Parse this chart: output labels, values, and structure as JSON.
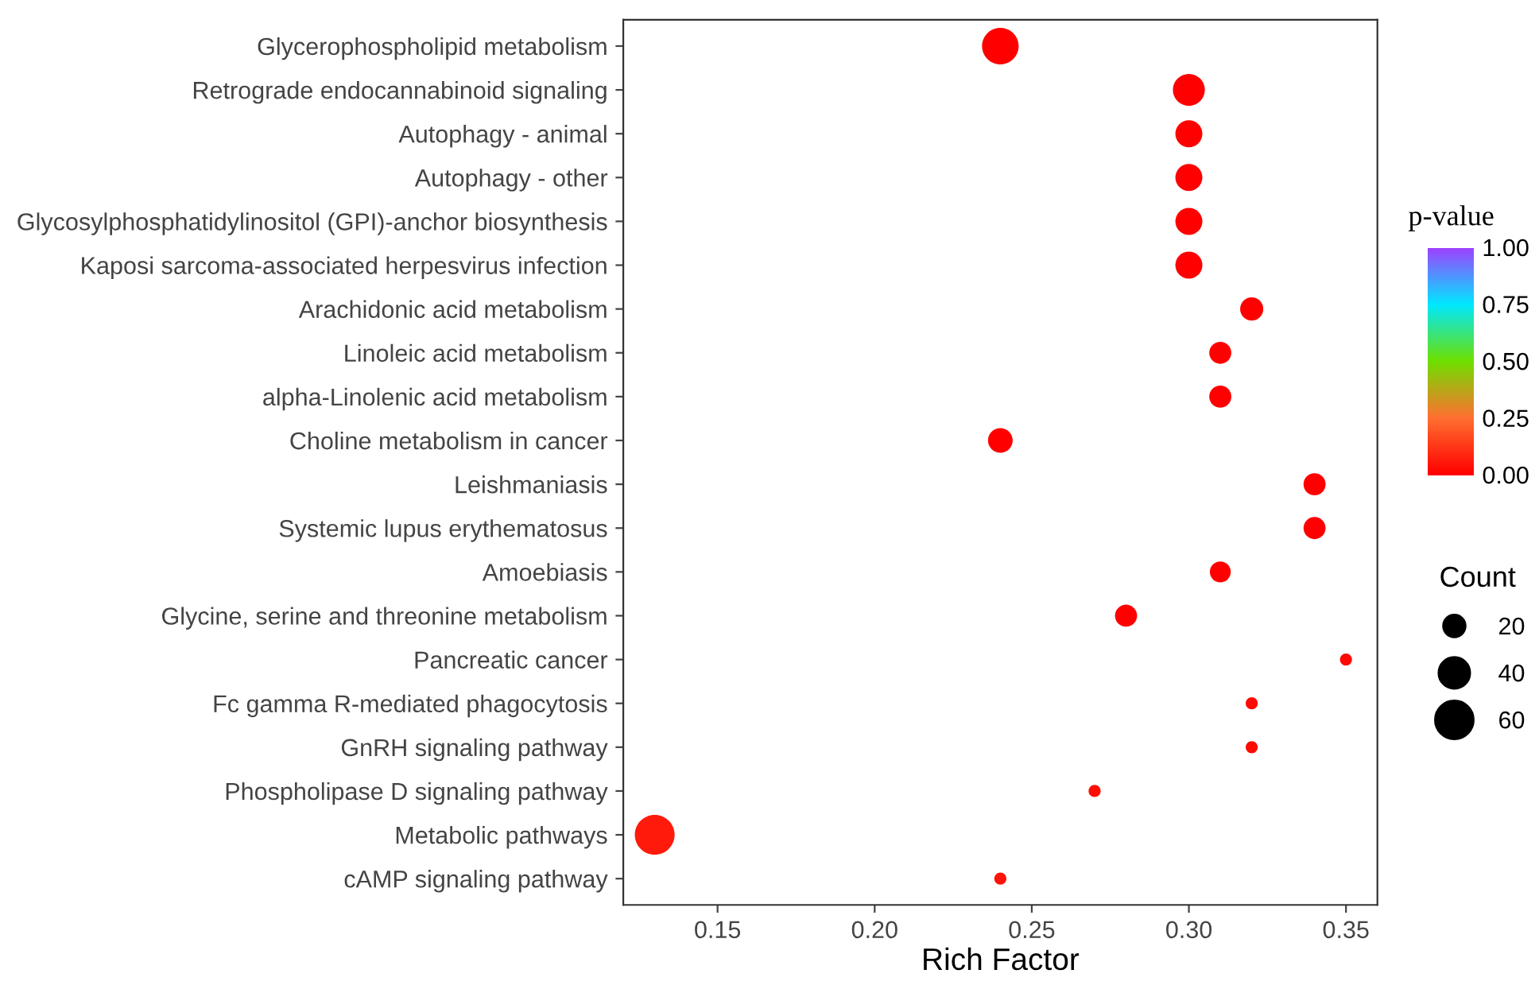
{
  "chart_data": {
    "type": "bubble",
    "orientation": "horizontal",
    "xlabel": "Rich Factor",
    "clabel": "p-value",
    "legend_title": "Count",
    "grid": false,
    "categories": [
      "Glycerophospholipid metabolism",
      "Retrograde endocannabinoid signaling",
      "Autophagy - animal",
      "Autophagy - other",
      "Glycosylphosphatidylinositol (GPI)-anchor biosynthesis",
      "Kaposi sarcoma-associated herpesvirus infection",
      "Arachidonic acid metabolism",
      "Linoleic acid metabolism",
      "alpha-Linolenic acid metabolism",
      "Choline metabolism in cancer",
      "Leishmaniasis",
      "Systemic lupus erythematosus",
      "Amoebiasis",
      "Glycine, serine and threonine metabolism",
      "Pancreatic cancer",
      "Fc gamma R-mediated phagocytosis",
      "GnRH signaling pathway",
      "Phospholipase D signaling pathway",
      "Metabolic pathways",
      "cAMP signaling pathway"
    ],
    "values": [
      0.24,
      0.3,
      0.3,
      0.3,
      0.3,
      0.3,
      0.32,
      0.31,
      0.31,
      0.24,
      0.34,
      0.34,
      0.31,
      0.28,
      0.35,
      0.32,
      0.32,
      0.27,
      0.13,
      0.24
    ],
    "sizes": [
      55,
      42,
      30,
      30,
      30,
      30,
      22,
      20,
      20,
      25,
      20,
      20,
      18,
      20,
      6,
      6,
      6,
      6,
      65,
      6
    ],
    "size_legend": [
      20,
      40,
      60
    ],
    "cvalues": [
      0.0,
      0.0,
      0.0,
      0.0,
      0.0,
      0.0,
      0.0,
      0.0,
      0.0,
      0.0,
      0.0,
      0.0,
      0.0,
      0.0,
      0.02,
      0.02,
      0.02,
      0.03,
      0.06,
      0.04
    ],
    "clim": [
      0,
      1
    ],
    "cticks": [
      {
        "value": 0,
        "label": "0.00"
      },
      {
        "value": 0.25,
        "label": "0.25"
      },
      {
        "value": 0.5,
        "label": "0.50"
      },
      {
        "value": 0.75,
        "label": "0.75"
      },
      {
        "value": 1,
        "label": "1.00"
      }
    ],
    "xlim": [
      0.12,
      0.36
    ],
    "xticks": [
      0.15,
      {
        "value": 0.2,
        "label": "0.20"
      },
      0.25,
      {
        "value": 0.3,
        "label": "0.30"
      },
      0.35
    ]
  }
}
